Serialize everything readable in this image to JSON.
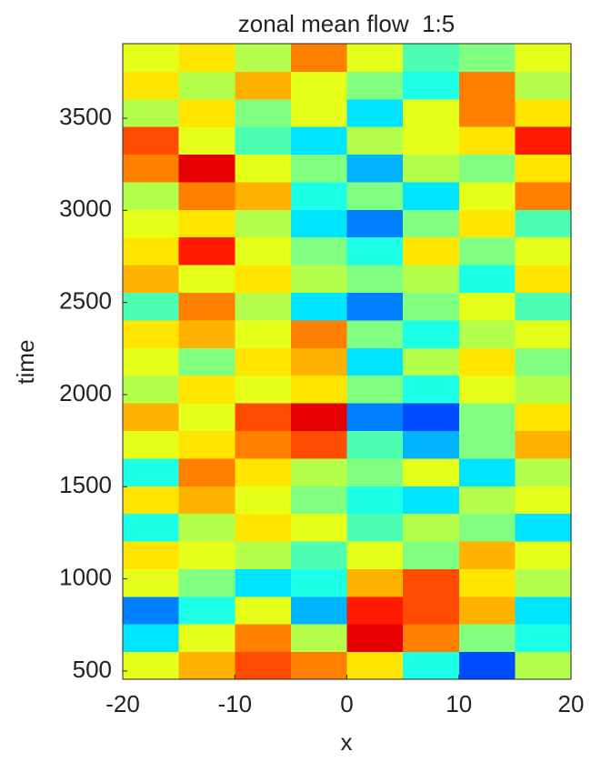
{
  "chart_data": {
    "type": "heatmap",
    "title": "zonal mean flow  1:5",
    "xlabel": "x",
    "ylabel": "time",
    "xbins": [
      -20,
      -15,
      -10,
      -5,
      0,
      5,
      10,
      15,
      20
    ],
    "ybins": [
      455,
      605,
      755,
      905,
      1055,
      1205,
      1355,
      1505,
      1655,
      1805,
      1955,
      2105,
      2255,
      2405,
      2555,
      2705,
      2855,
      3005,
      3155,
      3305,
      3455,
      3605,
      3755,
      3905
    ],
    "z": [
      [
        0.2,
        0.4,
        0.6,
        0.5,
        0.3,
        -0.2,
        -0.6,
        0.1
      ],
      [
        -0.3,
        0.2,
        0.5,
        0.1,
        0.8,
        0.5,
        0,
        -0.2
      ],
      [
        -0.5,
        -0.2,
        0.2,
        -0.4,
        0.7,
        0.6,
        0.4,
        -0.3
      ],
      [
        0.2,
        0,
        -0.3,
        -0.2,
        0.4,
        0.6,
        0.3,
        0.1
      ],
      [
        0.3,
        0.2,
        0.1,
        -0.1,
        0.2,
        0,
        0.4,
        0.2
      ],
      [
        -0.2,
        0.1,
        0.3,
        0.2,
        -0.1,
        0.1,
        0,
        -0.3
      ],
      [
        0.3,
        0.4,
        0.2,
        0,
        -0.2,
        -0.3,
        0.1,
        0.2
      ],
      [
        -0.2,
        0.5,
        0.3,
        0.1,
        0,
        0.2,
        -0.3,
        0.1
      ],
      [
        0.2,
        0.3,
        0.5,
        0.6,
        -0.1,
        -0.4,
        0,
        0.4
      ],
      [
        0.4,
        0.2,
        0.6,
        0.8,
        -0.5,
        -0.6,
        0,
        0.3
      ],
      [
        0.1,
        0.3,
        0.2,
        0.3,
        0,
        -0.2,
        0.2,
        0.1
      ],
      [
        0.2,
        0,
        0.3,
        0.4,
        -0.3,
        0.1,
        0.3,
        0
      ],
      [
        0.3,
        0.4,
        0.2,
        0.5,
        0,
        -0.2,
        0.1,
        0.2
      ],
      [
        -0.1,
        0.5,
        0.1,
        -0.3,
        -0.5,
        0,
        0.2,
        -0.1
      ],
      [
        0.4,
        0.2,
        0.3,
        0.1,
        0,
        0.1,
        -0.2,
        0.3
      ],
      [
        0.3,
        0.7,
        0.2,
        0,
        -0.2,
        0.3,
        0,
        0.2
      ],
      [
        0.2,
        0.3,
        0.1,
        -0.3,
        -0.5,
        0,
        0.3,
        -0.1
      ],
      [
        0.1,
        0.5,
        0.4,
        -0.2,
        0,
        -0.3,
        0.2,
        0.5
      ],
      [
        0.5,
        0.8,
        0.2,
        0,
        -0.4,
        0.1,
        0,
        0.3
      ],
      [
        0.6,
        0.2,
        -0.1,
        -0.3,
        0.1,
        0.2,
        0.3,
        0.7
      ],
      [
        0.1,
        0.3,
        0,
        0.2,
        -0.3,
        0.2,
        0.5,
        0.3
      ],
      [
        0.3,
        0.1,
        0.4,
        0.2,
        0,
        -0.2,
        0.5,
        0.1
      ],
      [
        0.2,
        0.3,
        0.1,
        0.5,
        0.2,
        -0.1,
        0,
        0.2
      ]
    ],
    "clim": [
      -1,
      1
    ],
    "colormap": "jet",
    "xlim": [
      -20,
      20
    ],
    "ylim": [
      455,
      3905
    ],
    "xticks": [
      -20,
      -10,
      0,
      10,
      20
    ],
    "yticks": [
      500,
      1000,
      1500,
      2000,
      2500,
      3000,
      3500
    ]
  }
}
